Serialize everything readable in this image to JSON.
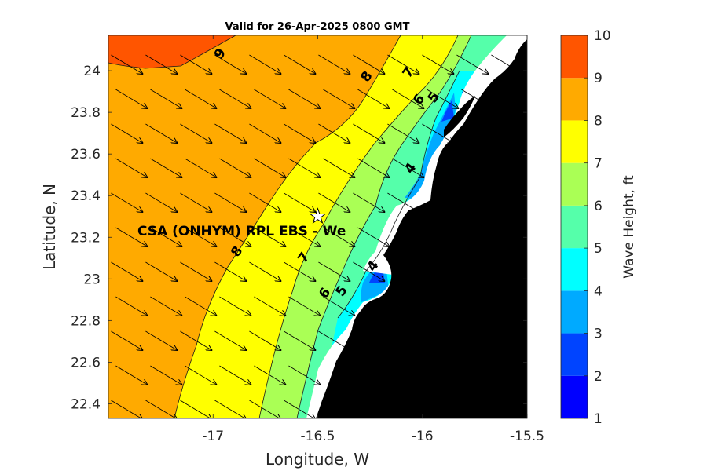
{
  "chart_data": {
    "type": "contour-map",
    "title": "Valid for 26-Apr-2025 0800 GMT",
    "xlabel": "Longitude, W",
    "ylabel": "Latitude, N",
    "xlim": [
      -17.5,
      -15.5
    ],
    "ylim": [
      22.33,
      24.17
    ],
    "x_ticks": [
      {
        "value": -17,
        "label": "-17"
      },
      {
        "value": -16.5,
        "label": "-16.5"
      },
      {
        "value": -16,
        "label": "-16"
      },
      {
        "value": -15.5,
        "label": "-15.5"
      }
    ],
    "y_ticks": [
      {
        "value": 22.4,
        "label": "22.4"
      },
      {
        "value": 22.6,
        "label": "22.6"
      },
      {
        "value": 22.8,
        "label": "22.8"
      },
      {
        "value": 23.0,
        "label": "23"
      },
      {
        "value": 23.2,
        "label": "23.2"
      },
      {
        "value": 23.4,
        "label": "23.4"
      },
      {
        "value": 23.6,
        "label": "23.6"
      },
      {
        "value": 23.8,
        "label": "23.8"
      },
      {
        "value": 24.0,
        "label": "24"
      }
    ],
    "colorbar": {
      "label": "Wave Height, ft",
      "min": 1,
      "max": 10,
      "ticks": [
        "1",
        "2",
        "3",
        "4",
        "5",
        "6",
        "7",
        "8",
        "9",
        "10"
      ],
      "colors": [
        "#0000ff",
        "#0044ff",
        "#00aaff",
        "#00ffff",
        "#55ffaa",
        "#aaff55",
        "#ffff00",
        "#ffaa00",
        "#ff5500"
      ]
    },
    "bands": [
      {
        "min": 9,
        "max": 10,
        "color": "#ff5500"
      },
      {
        "min": 8,
        "max": 9,
        "color": "#ffaa00"
      },
      {
        "min": 7,
        "max": 8,
        "color": "#ffff00"
      },
      {
        "min": 6,
        "max": 7,
        "color": "#aaff55"
      },
      {
        "min": 5,
        "max": 6,
        "color": "#55ffaa"
      },
      {
        "min": 4,
        "max": 5,
        "color": "#00ffff"
      },
      {
        "min": 3,
        "max": 4,
        "color": "#00aaff"
      },
      {
        "min": 2,
        "max": 3,
        "color": "#0044ff"
      },
      {
        "min": 1,
        "max": 2,
        "color": "#0000ff"
      }
    ],
    "contour_labels": [
      {
        "text": "9",
        "lon": -16.95,
        "lat": 24.07
      },
      {
        "text": "8",
        "lon": -16.25,
        "lat": 23.96
      },
      {
        "text": "8",
        "lon": -16.87,
        "lat": 23.12
      },
      {
        "text": "7",
        "lon": -16.05,
        "lat": 23.98
      },
      {
        "text": "7",
        "lon": -16.55,
        "lat": 23.09
      },
      {
        "text": "6",
        "lon": -16.45,
        "lat": 22.92
      },
      {
        "text": "6",
        "lon": -16.0,
        "lat": 23.85
      },
      {
        "text": "5",
        "lon": -16.37,
        "lat": 22.93
      },
      {
        "text": "5",
        "lon": -15.93,
        "lat": 23.86
      },
      {
        "text": "4",
        "lon": -16.22,
        "lat": 23.05
      },
      {
        "text": "4",
        "lon": -16.04,
        "lat": 23.52
      }
    ],
    "station": {
      "label": "CSA (ONHYM) RPL EBS - We",
      "lon": -16.5,
      "lat": 23.3
    },
    "wave_direction": "toward SSE",
    "land_color": "#000000"
  }
}
